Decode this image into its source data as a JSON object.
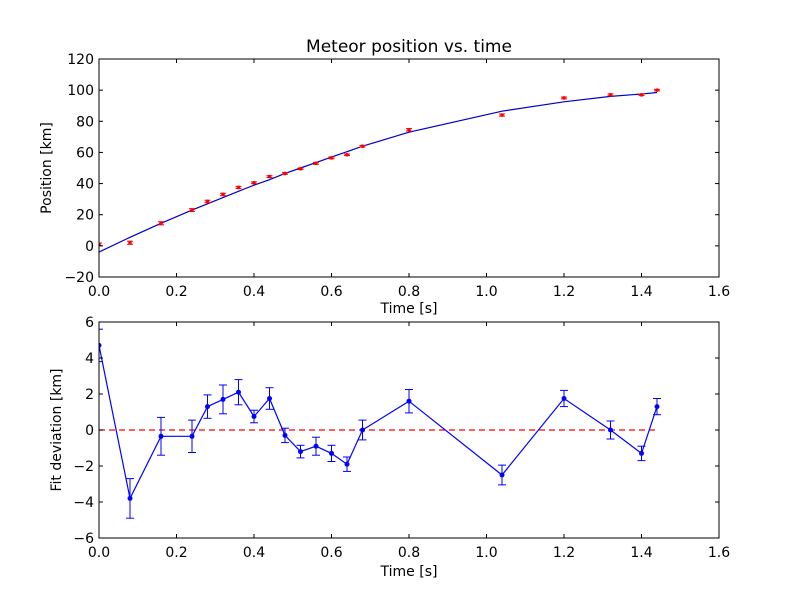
{
  "chart_data": [
    {
      "type": "scatter",
      "title": "Meteor position vs. time",
      "xlabel": "Time [s]",
      "ylabel": "Position [km]",
      "xlim": [
        0.0,
        1.6
      ],
      "ylim": [
        -20,
        120
      ],
      "xticks": [
        "0.0",
        "0.2",
        "0.4",
        "0.6",
        "0.8",
        "1.0",
        "1.2",
        "1.4",
        "1.6"
      ],
      "yticks": [
        "−20",
        "0",
        "20",
        "40",
        "60",
        "80",
        "100",
        "120"
      ],
      "xtick_values": [
        0.0,
        0.2,
        0.4,
        0.6,
        0.8,
        1.0,
        1.2,
        1.4,
        1.6
      ],
      "ytick_values": [
        -20,
        0,
        20,
        40,
        60,
        80,
        100,
        120
      ],
      "grid": false,
      "measurements": {
        "x": [
          0.0,
          0.08,
          0.16,
          0.24,
          0.28,
          0.32,
          0.36,
          0.4,
          0.44,
          0.48,
          0.52,
          0.56,
          0.6,
          0.64,
          0.68,
          0.8,
          1.04,
          1.2,
          1.32,
          1.4,
          1.44
        ],
        "y": [
          1.0,
          2.0,
          14.5,
          23.0,
          28.5,
          33.0,
          37.5,
          40.5,
          44.5,
          46.5,
          49.5,
          53.0,
          56.5,
          58.5,
          64.0,
          74.5,
          84.0,
          95.0,
          97.0,
          97.0,
          100.0
        ],
        "yerr": [
          0.8,
          1.0,
          1.0,
          0.9,
          0.8,
          0.8,
          0.7,
          0.6,
          0.6,
          0.5,
          0.5,
          0.6,
          0.6,
          0.5,
          0.5,
          0.8,
          0.7,
          0.6,
          0.6,
          0.5,
          0.5
        ],
        "color": "#ff0000"
      },
      "fit": {
        "x": [
          0.0,
          0.08,
          0.16,
          0.24,
          0.28,
          0.32,
          0.36,
          0.4,
          0.44,
          0.48,
          0.52,
          0.56,
          0.6,
          0.64,
          0.68,
          0.8,
          1.04,
          1.2,
          1.32,
          1.4,
          1.44
        ],
        "y": [
          -4.0,
          5.5,
          14.5,
          23.0,
          27.0,
          31.0,
          35.0,
          39.0,
          42.5,
          46.5,
          50.0,
          53.5,
          57.0,
          60.5,
          64.0,
          73.0,
          86.5,
          92.5,
          96.0,
          97.5,
          98.5
        ],
        "color": "#0000cc"
      }
    },
    {
      "type": "line",
      "title": "",
      "xlabel": "Time [s]",
      "ylabel": "Fit deviation [km]",
      "xlim": [
        0.0,
        1.6
      ],
      "ylim": [
        -6,
        6
      ],
      "xticks": [
        "0.0",
        "0.2",
        "0.4",
        "0.6",
        "0.8",
        "1.0",
        "1.2",
        "1.4",
        "1.6"
      ],
      "yticks": [
        "−6",
        "−4",
        "−2",
        "0",
        "2",
        "4",
        "6"
      ],
      "xtick_values": [
        0.0,
        0.2,
        0.4,
        0.6,
        0.8,
        1.0,
        1.2,
        1.4,
        1.6
      ],
      "ytick_values": [
        -6,
        -4,
        -2,
        0,
        2,
        4,
        6
      ],
      "grid": false,
      "deviation": {
        "x": [
          0.0,
          0.08,
          0.16,
          0.24,
          0.28,
          0.32,
          0.36,
          0.4,
          0.44,
          0.48,
          0.52,
          0.56,
          0.6,
          0.64,
          0.68,
          0.8,
          1.04,
          1.2,
          1.32,
          1.4,
          1.44
        ],
        "y": [
          4.7,
          -3.8,
          -0.35,
          -0.35,
          1.3,
          1.7,
          2.1,
          0.75,
          1.75,
          -0.3,
          -1.2,
          -0.9,
          -1.3,
          -1.9,
          0.0,
          1.6,
          -2.5,
          1.75,
          0.0,
          -1.3,
          1.3
        ],
        "yerr": [
          0.9,
          1.1,
          1.05,
          0.9,
          0.65,
          0.8,
          0.7,
          0.35,
          0.6,
          0.4,
          0.35,
          0.5,
          0.45,
          0.4,
          0.55,
          0.65,
          0.55,
          0.45,
          0.5,
          0.4,
          0.45
        ],
        "color": "#0000ff"
      },
      "zero_line": {
        "y": 0,
        "color": "#ff0000",
        "x_range": [
          0.0,
          1.44
        ]
      }
    }
  ]
}
